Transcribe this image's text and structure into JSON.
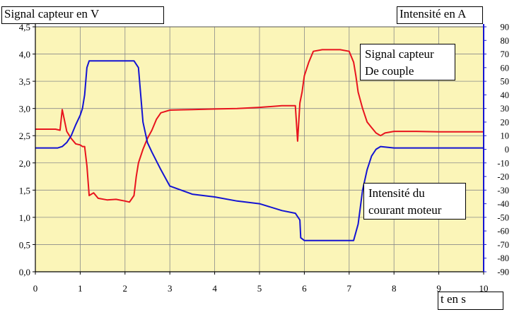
{
  "chart_data": {
    "type": "line",
    "left_axis": {
      "title": "Signal capteur en V",
      "ticks": [
        "0,0",
        "0,5",
        "1,0",
        "1,5",
        "2,0",
        "2,5",
        "3,0",
        "3,5",
        "4,0",
        "4,5"
      ],
      "ylim": [
        0,
        4.5
      ]
    },
    "right_axis": {
      "title": "Intensité en A",
      "ticks": [
        "-90",
        "-80",
        "-70",
        "-60",
        "-50",
        "-40",
        "-30",
        "-20",
        "-10",
        "0",
        "10",
        "20",
        "30",
        "40",
        "50",
        "60",
        "70",
        "80",
        "90"
      ],
      "ylim": [
        -90,
        90
      ]
    },
    "x_axis": {
      "title": "t en s",
      "ticks": [
        "0",
        "1",
        "2",
        "3",
        "4",
        "5",
        "6",
        "7",
        "8",
        "9",
        "10"
      ],
      "xlim": [
        0,
        10
      ]
    },
    "grid": true,
    "series": [
      {
        "name_lines": [
          "Signal capteur",
          "De couple"
        ],
        "axis": "left",
        "color": "#e8141e",
        "x": [
          0,
          0.45,
          0.55,
          0.6,
          0.7,
          0.8,
          0.9,
          1.0,
          1.05,
          1.1,
          1.15,
          1.2,
          1.3,
          1.4,
          1.6,
          1.8,
          2.0,
          2.1,
          2.2,
          2.25,
          2.3,
          2.4,
          2.5,
          2.6,
          2.7,
          2.8,
          3.0,
          3.5,
          4.0,
          4.5,
          5.0,
          5.5,
          5.8,
          5.85,
          5.9,
          5.95,
          6.0,
          6.1,
          6.2,
          6.4,
          6.6,
          6.8,
          7.0,
          7.1,
          7.15,
          7.2,
          7.3,
          7.4,
          7.5,
          7.6,
          7.7,
          7.8,
          8.0,
          8.5,
          9.0,
          9.2,
          10
        ],
        "y": [
          2.62,
          2.62,
          2.6,
          2.98,
          2.58,
          2.45,
          2.35,
          2.33,
          2.3,
          2.3,
          1.95,
          1.4,
          1.45,
          1.35,
          1.32,
          1.33,
          1.3,
          1.28,
          1.4,
          1.75,
          2.0,
          2.25,
          2.45,
          2.6,
          2.8,
          2.92,
          2.97,
          2.98,
          2.99,
          3.0,
          3.02,
          3.05,
          3.05,
          2.4,
          3.1,
          3.3,
          3.6,
          3.85,
          4.05,
          4.08,
          4.08,
          4.08,
          4.05,
          3.85,
          3.6,
          3.3,
          3.0,
          2.75,
          2.65,
          2.55,
          2.5,
          2.55,
          2.58,
          2.58,
          2.57,
          2.57,
          2.57
        ]
      },
      {
        "name_lines": [
          "Intensité du",
          "courant moteur"
        ],
        "axis": "right",
        "color": "#1414d2",
        "x": [
          0,
          0.5,
          0.6,
          0.7,
          0.8,
          0.9,
          1.0,
          1.05,
          1.1,
          1.15,
          1.2,
          1.3,
          1.6,
          2.0,
          2.2,
          2.3,
          2.35,
          2.4,
          2.5,
          2.6,
          2.8,
          3.0,
          3.5,
          4.0,
          4.5,
          5.0,
          5.5,
          5.8,
          5.9,
          5.92,
          6.0,
          6.5,
          7.0,
          7.1,
          7.2,
          7.3,
          7.4,
          7.5,
          7.6,
          7.7,
          8.0,
          9.0,
          10
        ],
        "y": [
          1,
          1,
          2,
          5,
          10,
          18,
          25,
          30,
          40,
          60,
          65,
          65,
          65,
          65,
          65,
          60,
          40,
          20,
          5,
          -2,
          -15,
          -27,
          -33,
          -35,
          -38,
          -40,
          -45,
          -47,
          -52,
          -65,
          -67,
          -67,
          -67,
          -67,
          -55,
          -30,
          -15,
          -5,
          0,
          2,
          1,
          1,
          1
        ]
      }
    ]
  }
}
